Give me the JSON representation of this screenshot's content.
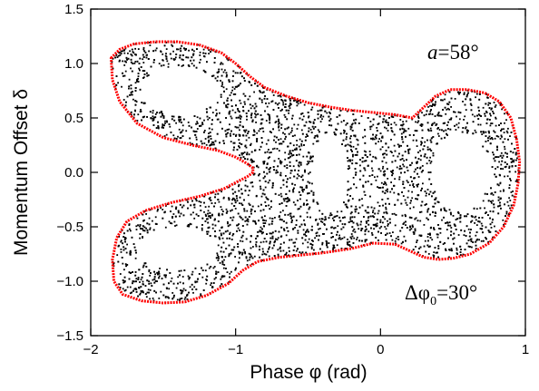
{
  "chart_data": {
    "type": "scatter",
    "xlabel": "Phase  φ (rad)",
    "ylabel": "Momentum Offset δ",
    "xlim": [
      -2,
      1
    ],
    "ylim": [
      -1.5,
      1.5
    ],
    "x_ticks": [
      -2,
      -1,
      0,
      1
    ],
    "x_tick_labels": [
      "−2",
      "−1",
      "0",
      "1"
    ],
    "y_ticks": [
      -1.5,
      -1.0,
      -0.5,
      0.0,
      0.5,
      1.0,
      1.5
    ],
    "y_tick_labels": [
      "−1.5",
      "−1.0",
      "−0.5",
      "0.0",
      "0.5",
      "1.0",
      "1.5"
    ],
    "grid": false,
    "annotations": {
      "angle_prefix": "a",
      "angle_value": "=58°",
      "phase_prefix": "Δφ",
      "phase_sub": "0",
      "phase_value": "=30°"
    },
    "series": [
      {
        "style": "boundary",
        "color": "#ff0000",
        "x": [
          -1.86,
          -1.8,
          -1.7,
          -1.55,
          -1.4,
          -1.25,
          -1.1,
          -1.0,
          -0.9,
          -0.8,
          -0.65,
          -0.5,
          -0.35,
          -0.2,
          -0.05,
          0.1,
          0.22,
          0.3,
          0.38,
          0.48,
          0.6,
          0.72,
          0.82,
          0.9,
          0.94,
          0.96,
          0.95,
          0.92,
          0.85,
          0.75,
          0.62,
          0.5,
          0.4,
          0.3,
          0.2,
          0.1,
          -0.05,
          -0.2,
          -0.4,
          -0.55,
          -0.7,
          -0.85,
          -0.95,
          -1.05,
          -1.2,
          -1.35,
          -1.5,
          -1.65,
          -1.78,
          -1.84,
          -1.85,
          -1.82,
          -1.75,
          -1.62,
          -1.45,
          -1.25,
          -1.08,
          -0.98,
          -0.92,
          -0.88,
          -0.88,
          -0.92,
          -1.0,
          -1.12,
          -1.3,
          -1.5,
          -1.68,
          -1.8,
          -1.85,
          -1.86
        ],
        "y": [
          1.05,
          1.13,
          1.18,
          1.2,
          1.2,
          1.17,
          1.1,
          1.0,
          0.88,
          0.78,
          0.7,
          0.64,
          0.6,
          0.57,
          0.55,
          0.53,
          0.5,
          0.6,
          0.7,
          0.76,
          0.76,
          0.73,
          0.65,
          0.5,
          0.3,
          0.1,
          -0.1,
          -0.3,
          -0.5,
          -0.65,
          -0.75,
          -0.79,
          -0.8,
          -0.78,
          -0.72,
          -0.66,
          -0.65,
          -0.7,
          -0.74,
          -0.76,
          -0.78,
          -0.82,
          -0.9,
          -1.02,
          -1.13,
          -1.19,
          -1.2,
          -1.18,
          -1.12,
          -1.0,
          -0.8,
          -0.6,
          -0.45,
          -0.35,
          -0.28,
          -0.22,
          -0.15,
          -0.08,
          -0.04,
          0.0,
          0.04,
          0.08,
          0.14,
          0.2,
          0.25,
          0.32,
          0.45,
          0.65,
          0.85,
          1.05
        ]
      },
      {
        "style": "islands",
        "x": [
          -1.38,
          -0.35,
          0.55,
          -1.4
        ],
        "y": [
          0.75,
          0.0,
          0.0,
          -0.7
        ]
      }
    ]
  }
}
